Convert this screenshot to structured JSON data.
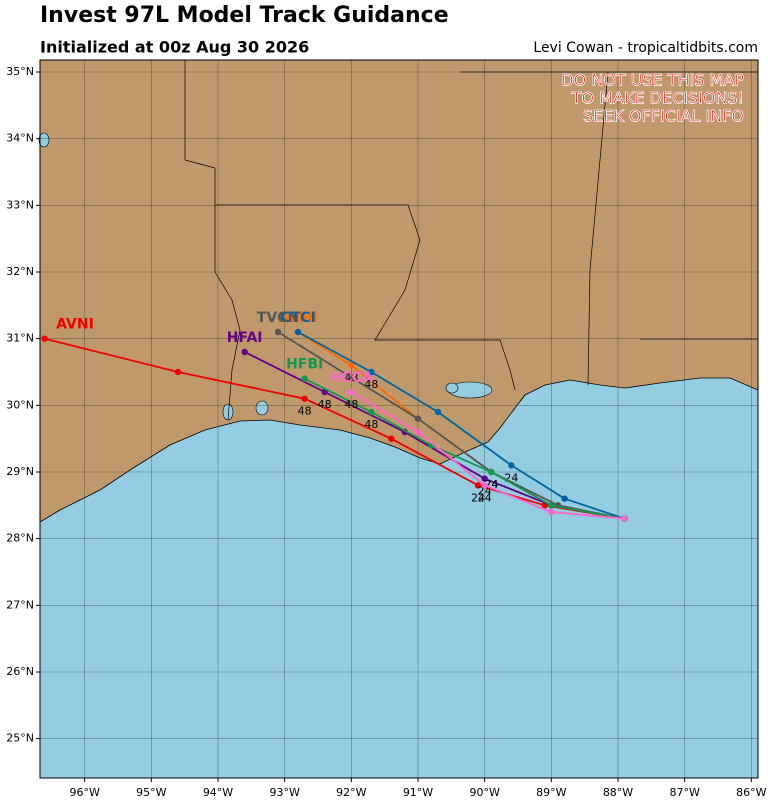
{
  "header": {
    "title": "Invest 97L Model Track Guidance",
    "subtitle": "Initialized at 00z Aug 30 2026",
    "credit": "Levi Cowan - tropicaltidbits.com"
  },
  "warning": [
    "DO NOT USE THIS MAP",
    "TO MAKE DECISIONS!",
    "SEEK OFFICIAL INFO"
  ],
  "map": {
    "lon_range": [
      -96.67,
      -85.9
    ],
    "lat_range": [
      24.41,
      35.18
    ],
    "grid": true,
    "lon_ticks": [
      {
        "value": -96,
        "label": "96°W"
      },
      {
        "value": -95,
        "label": "95°W"
      },
      {
        "value": -94,
        "label": "94°W"
      },
      {
        "value": -93,
        "label": "93°W"
      },
      {
        "value": -92,
        "label": "92°W"
      },
      {
        "value": -91,
        "label": "91°W"
      },
      {
        "value": -90,
        "label": "90°W"
      },
      {
        "value": -89,
        "label": "89°W"
      },
      {
        "value": -88,
        "label": "88°W"
      },
      {
        "value": -87,
        "label": "87°W"
      },
      {
        "value": -86,
        "label": "86°W"
      }
    ],
    "lat_ticks": [
      {
        "value": 25,
        "label": "25°N"
      },
      {
        "value": 26,
        "label": "26°N"
      },
      {
        "value": 27,
        "label": "27°N"
      },
      {
        "value": 28,
        "label": "28°N"
      },
      {
        "value": 29,
        "label": "29°N"
      },
      {
        "value": 30,
        "label": "30°N"
      },
      {
        "value": 31,
        "label": "31°N"
      },
      {
        "value": 32,
        "label": "32°N"
      },
      {
        "value": 33,
        "label": "33°N"
      },
      {
        "value": 34,
        "label": "34°N"
      },
      {
        "value": 35,
        "label": "35°N"
      }
    ],
    "tracks": [
      {
        "name": "AVNI",
        "color": "#ee0000",
        "lon": [
          -87.9,
          -89.1,
          -90.1,
          -91.4,
          -92.7,
          -94.6,
          -96.6
        ],
        "lat": [
          28.3,
          28.5,
          28.8,
          29.5,
          30.1,
          30.5,
          31.0
        ],
        "hour_labels": [
          "24",
          "48"
        ]
      },
      {
        "name": "AEMI",
        "color": "#ff6a00",
        "lon": [
          -87.9,
          -89.0,
          -89.9,
          -91.0,
          -92.0,
          -92.8
        ],
        "lat": [
          28.3,
          28.5,
          29.0,
          29.8,
          30.6,
          31.1
        ],
        "hour_labels": [
          "24",
          "48"
        ]
      },
      {
        "name": "CTCI",
        "color": "#0064a0",
        "lon": [
          -87.9,
          -88.8,
          -89.6,
          -90.7,
          -91.7,
          -92.8
        ],
        "lat": [
          28.3,
          28.6,
          29.1,
          29.9,
          30.5,
          31.1
        ],
        "hour_labels": [
          "24",
          "48"
        ]
      },
      {
        "name": "TVCN",
        "color": "#555555",
        "lon": [
          -87.9,
          -88.9,
          -89.9,
          -91.0,
          -93.1
        ],
        "lat": [
          28.3,
          28.5,
          29.0,
          29.8,
          31.1
        ]
      },
      {
        "name": "HFAI",
        "color": "#660088",
        "lon": [
          -87.9,
          -89.0,
          -90.0,
          -91.2,
          -92.4,
          -93.6
        ],
        "lat": [
          28.3,
          28.5,
          28.9,
          29.6,
          30.2,
          30.8
        ],
        "hour_labels": [
          "24",
          "48"
        ]
      },
      {
        "name": "HFBI",
        "color": "#129950",
        "lon": [
          -87.9,
          -89.0,
          -89.9,
          -90.8,
          -91.7,
          -92.7
        ],
        "lat": [
          28.3,
          28.5,
          29.0,
          29.4,
          29.9,
          30.4
        ],
        "hour_labels": [
          "24",
          "48"
        ]
      },
      {
        "name": "HCCA",
        "color": "#ff66cc",
        "lon": [
          -87.9,
          -89.0,
          -90.0,
          -91.0,
          -92.0
        ],
        "lat": [
          28.3,
          28.4,
          28.8,
          29.6,
          30.2
        ],
        "hour_labels": [
          "24",
          "48"
        ]
      }
    ]
  }
}
